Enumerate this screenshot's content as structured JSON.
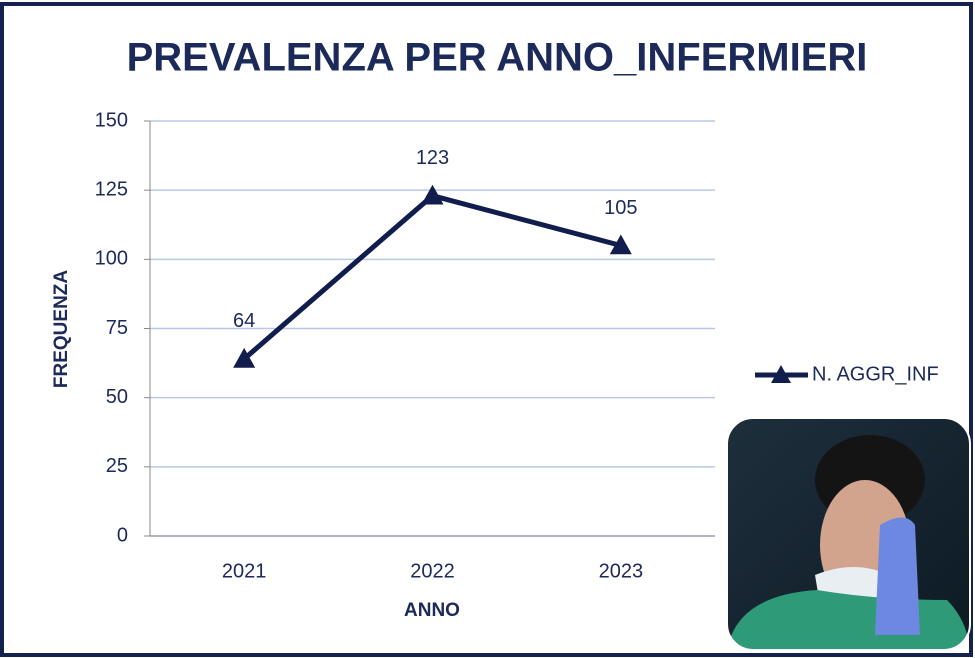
{
  "chart_data": {
    "type": "line",
    "title": "PREVALENZA PER ANNO_INFERMIERI",
    "x_label": "ANNO",
    "y_label": "FREQUENZA",
    "categories": [
      "2021",
      "2022",
      "2023"
    ],
    "series": [
      {
        "name": "N. AGGR_INF",
        "color": "#111d4d",
        "values": [
          64,
          123,
          105
        ]
      }
    ],
    "ylim": [
      0,
      150
    ],
    "yticks": [
      0,
      25,
      50,
      75,
      100,
      125,
      150
    ],
    "grid": true,
    "legend": "right"
  }
}
